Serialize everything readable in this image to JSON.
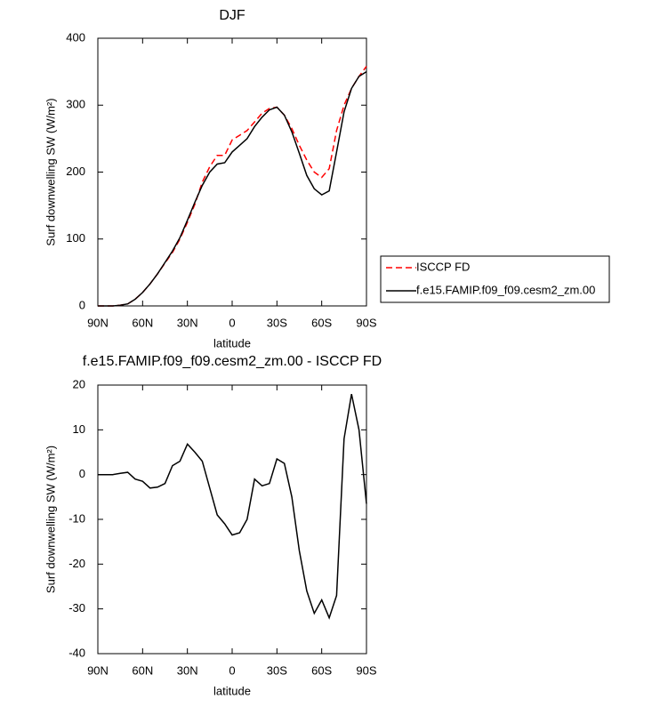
{
  "chart_data": [
    {
      "type": "line",
      "title": "DJF",
      "x_label": "latitude",
      "y_label": "Surf downwelling SW (W/m²)",
      "x": [
        90,
        85,
        80,
        75,
        70,
        65,
        60,
        55,
        50,
        45,
        40,
        35,
        30,
        25,
        20,
        15,
        10,
        5,
        0,
        -5,
        -10,
        -15,
        -20,
        -25,
        -30,
        -35,
        -40,
        -45,
        -50,
        -55,
        -60,
        -65,
        -70,
        -75,
        -80,
        -85,
        -90
      ],
      "xlim": [
        90,
        -90
      ],
      "xticks": [
        {
          "value": 90,
          "label": "90N"
        },
        {
          "value": 60,
          "label": "60N"
        },
        {
          "value": 30,
          "label": "30N"
        },
        0,
        {
          "value": -30,
          "label": "30S"
        },
        {
          "value": -60,
          "label": "60S"
        },
        {
          "value": -90,
          "label": "90S"
        }
      ],
      "ylim": [
        0,
        400
      ],
      "yticks": [
        0,
        100,
        200,
        300,
        400
      ],
      "legend": "outside-right",
      "series": [
        {
          "name": "ISCCP FD",
          "color": "#ff0000",
          "line_style": "dashed",
          "values": [
            0,
            0,
            0,
            1,
            3,
            10,
            20,
            33,
            48,
            64,
            80,
            100,
            125,
            152,
            185,
            208,
            225,
            225,
            248,
            255,
            262,
            275,
            288,
            295,
            297,
            285,
            265,
            240,
            218,
            200,
            192,
            205,
            262,
            300,
            325,
            343,
            358
          ]
        },
        {
          "name": "f.e15.FAMIP.f09_f09.cesm2_zm.00",
          "color": "#000000",
          "line_style": "solid",
          "values": [
            0,
            0,
            0,
            1,
            3,
            10,
            20,
            33,
            48,
            65,
            82,
            102,
            128,
            155,
            180,
            200,
            212,
            214,
            230,
            240,
            250,
            268,
            282,
            293,
            297,
            285,
            260,
            228,
            195,
            175,
            166,
            172,
            230,
            290,
            325,
            343,
            350
          ]
        }
      ]
    },
    {
      "type": "line",
      "title": "f.e15.FAMIP.f09_f09.cesm2_zm.00 - ISCCP FD",
      "x_label": "latitude",
      "y_label": "Surf downwelling SW (W/m²)",
      "x": [
        90,
        85,
        80,
        75,
        70,
        65,
        60,
        55,
        50,
        45,
        40,
        35,
        30,
        25,
        20,
        15,
        10,
        5,
        0,
        -5,
        -10,
        -15,
        -20,
        -25,
        -30,
        -35,
        -40,
        -45,
        -50,
        -55,
        -60,
        -65,
        -70,
        -75,
        -80,
        -85,
        -90
      ],
      "xlim": [
        90,
        -90
      ],
      "xticks": [
        {
          "value": 90,
          "label": "90N"
        },
        {
          "value": 60,
          "label": "60N"
        },
        {
          "value": 30,
          "label": "30N"
        },
        0,
        {
          "value": -30,
          "label": "30S"
        },
        {
          "value": -60,
          "label": "60S"
        },
        {
          "value": -90,
          "label": "90S"
        }
      ],
      "ylim": [
        -40,
        20
      ],
      "yticks": [
        -40,
        -30,
        -20,
        -10,
        0,
        10,
        20
      ],
      "color": "#000000",
      "values": [
        0,
        0,
        0,
        0.3,
        0.5,
        -1,
        -1.5,
        -3,
        -2.8,
        -2,
        2,
        3,
        6.8,
        5,
        3,
        -3,
        -9,
        -11,
        -13.5,
        -13,
        -10,
        -1,
        -2.5,
        -2,
        3.5,
        2.5,
        -5,
        -17,
        -26,
        -31,
        -28,
        -32,
        -27,
        8,
        18,
        10,
        -6.5
      ]
    }
  ]
}
